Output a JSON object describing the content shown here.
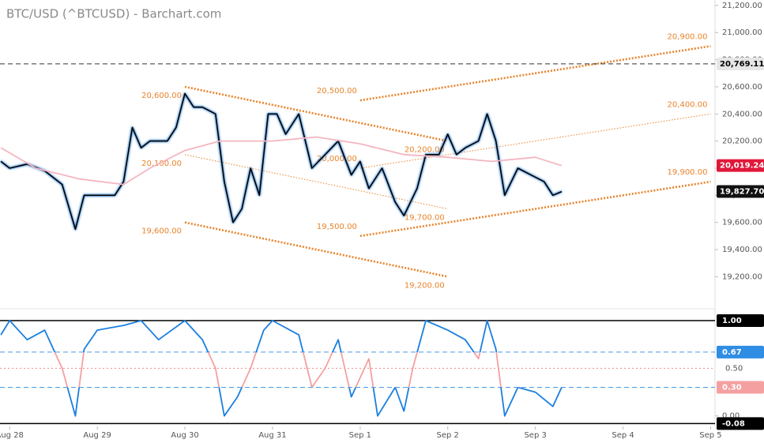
{
  "chart_data": [
    {
      "type": "line",
      "title": "BTC/USD (^BTCUSD) - Barchart.com",
      "xlim": [
        -0.11,
        8.05
      ],
      "ylim": [
        19010,
        21240
      ],
      "yticks": [
        {
          "value": 19200,
          "label": "19,200.00"
        },
        {
          "value": 19400,
          "label": "19,400.00"
        },
        {
          "value": 19600,
          "label": "19,600.00"
        },
        {
          "value": 19800,
          "label": "19,800.00"
        },
        {
          "value": 20000,
          "label": "20,000.00"
        },
        {
          "value": 20200,
          "label": "20,200.00"
        },
        {
          "value": 20400,
          "label": "20,400.00"
        },
        {
          "value": 20600,
          "label": "20,600.00"
        },
        {
          "value": 20800,
          "label": "20,800.00"
        },
        {
          "value": 21000,
          "label": "21,000.00"
        },
        {
          "value": 21200,
          "label": "21,200.00"
        }
      ],
      "series": [
        {
          "color": "#000000",
          "glow": "#4a90d9",
          "x": [
            -0.1,
            0,
            0.2,
            0.4,
            0.6,
            0.75,
            0.85,
            1.0,
            1.2,
            1.3,
            1.4,
            1.5,
            1.6,
            1.8,
            1.9,
            2.0,
            2.1,
            2.2,
            2.35,
            2.45,
            2.55,
            2.65,
            2.75,
            2.85,
            2.95,
            3.05,
            3.15,
            3.3,
            3.45,
            3.6,
            3.75,
            3.9,
            4.0,
            4.1,
            4.25,
            4.4,
            4.5,
            4.65,
            4.75,
            4.9,
            5.0,
            5.1,
            5.2,
            5.35,
            5.45,
            5.55,
            5.65,
            5.8,
            5.95,
            6.1,
            6.2,
            6.3
          ],
          "values": [
            20050,
            20000,
            20030,
            19980,
            19880,
            19550,
            19800,
            19800,
            19800,
            19900,
            20300,
            20150,
            20200,
            20200,
            20300,
            20550,
            20450,
            20450,
            20400,
            19900,
            19600,
            19700,
            20000,
            19800,
            20400,
            20400,
            20250,
            20400,
            20000,
            20100,
            20200,
            19950,
            20050,
            19850,
            20000,
            19750,
            19650,
            19850,
            20100,
            20100,
            20250,
            20100,
            20150,
            20200,
            20400,
            20200,
            19800,
            20000,
            19950,
            19900,
            19800,
            19827.7
          ]
        },
        {
          "color": "#f4b6c0",
          "x": [
            -0.1,
            0.3,
            0.8,
            1.3,
            1.6,
            2.0,
            2.4,
            3.0,
            3.5,
            4.0,
            4.5,
            5.0,
            5.5,
            6.0,
            6.3
          ],
          "values": [
            20150,
            20000,
            19920,
            19880,
            20000,
            20130,
            20200,
            20200,
            20230,
            20180,
            20100,
            20080,
            20050,
            20080,
            20019.24
          ]
        }
      ],
      "trendlines": [
        {
          "x": [
            2.0,
            5.0
          ],
          "y": [
            20600,
            20200
          ],
          "labels": [
            "20,600.00",
            "20,200.00"
          ],
          "style": "thick"
        },
        {
          "x": [
            2.0,
            5.0
          ],
          "y": [
            20100,
            19700
          ],
          "labels": [
            "20,100.00",
            "19,700.00"
          ],
          "style": "thin"
        },
        {
          "x": [
            2.0,
            5.0
          ],
          "y": [
            19600,
            19200
          ],
          "labels": [
            "19,600.00",
            "19,200.00"
          ],
          "style": "thick"
        },
        {
          "x": [
            4.0,
            8.0
          ],
          "y": [
            20500,
            20900
          ],
          "labels": [
            "20,500.00",
            "20,900.00"
          ],
          "style": "thick"
        },
        {
          "x": [
            4.0,
            8.0
          ],
          "y": [
            20000,
            20400
          ],
          "labels": [
            "20,000.00",
            "20,400.00"
          ],
          "style": "thin"
        },
        {
          "x": [
            4.0,
            8.0
          ],
          "y": [
            19500,
            19900
          ],
          "labels": [
            "19,500.00",
            "19,900.00"
          ],
          "style": "thick"
        }
      ],
      "trendline_color": "#e8832a",
      "badges": [
        {
          "value": 20769.11,
          "label": "20,769.11",
          "color": "#e6e6e6",
          "text_color": "#000000",
          "line": "dashed"
        },
        {
          "value": 20019.24,
          "label": "20,019.24",
          "color": "#e0183a",
          "text_color": "#ffffff"
        },
        {
          "value": 19827.7,
          "label": "19,827.70",
          "color": "#111111",
          "text_color": "#ffffff"
        }
      ]
    },
    {
      "type": "line",
      "xlim": [
        -0.11,
        8.05
      ],
      "ylim": [
        -0.11,
        1.05
      ],
      "xticks": [
        {
          "value": 0,
          "label": "Aug 28"
        },
        {
          "value": 1,
          "label": "Aug 29"
        },
        {
          "value": 2,
          "label": "Aug 30"
        },
        {
          "value": 3,
          "label": "Aug 31"
        },
        {
          "value": 4,
          "label": "Sep 1"
        },
        {
          "value": 5,
          "label": "Sep 2"
        },
        {
          "value": 6,
          "label": "Sep 3"
        },
        {
          "value": 7,
          "label": "Sep 4"
        },
        {
          "value": 8,
          "label": "Sep 5"
        }
      ],
      "yticks": [
        {
          "value": 0,
          "label": "0.00"
        }
      ],
      "series": [
        {
          "color": "#f4a0a0",
          "highlight_color": "#1a7fe0",
          "x": [
            -0.1,
            0,
            0.2,
            0.4,
            0.6,
            0.75,
            0.85,
            1.0,
            1.3,
            1.5,
            1.7,
            2.0,
            2.2,
            2.35,
            2.45,
            2.6,
            2.75,
            2.9,
            3.0,
            3.3,
            3.45,
            3.6,
            3.75,
            3.9,
            4.1,
            4.2,
            4.4,
            4.5,
            4.6,
            4.75,
            5.0,
            5.2,
            5.35,
            5.45,
            5.55,
            5.65,
            5.8,
            6.0,
            6.2,
            6.3
          ],
          "values": [
            0.85,
            1.0,
            0.8,
            0.9,
            0.5,
            0.0,
            0.7,
            0.9,
            0.95,
            1.0,
            0.8,
            1.0,
            0.8,
            0.5,
            0.0,
            0.2,
            0.5,
            0.9,
            1.0,
            0.85,
            0.3,
            0.5,
            0.8,
            0.2,
            0.6,
            0.0,
            0.3,
            0.05,
            0.5,
            1.0,
            0.9,
            0.8,
            0.6,
            1.0,
            0.7,
            0.0,
            0.3,
            0.25,
            0.1,
            0.3
          ]
        }
      ],
      "levels": [
        {
          "value": 1.0,
          "label": "1.00",
          "color": "#000000",
          "style": "solid",
          "badge": "#000000"
        },
        {
          "value": 0.67,
          "label": "0.67",
          "color": "#4a9be8",
          "style": "dashed",
          "badge": "#2f8de4"
        },
        {
          "value": 0.5,
          "label": "0.50",
          "color": "#f08a8a",
          "style": "dotted"
        },
        {
          "value": 0.3,
          "label": "0.30",
          "color": "#4a9be8",
          "style": "dashed",
          "badge": "#f4a0a0"
        },
        {
          "value": -0.08,
          "label": "-0.08",
          "color": "#000000",
          "style": "solid",
          "badge": "#000000"
        }
      ]
    }
  ]
}
